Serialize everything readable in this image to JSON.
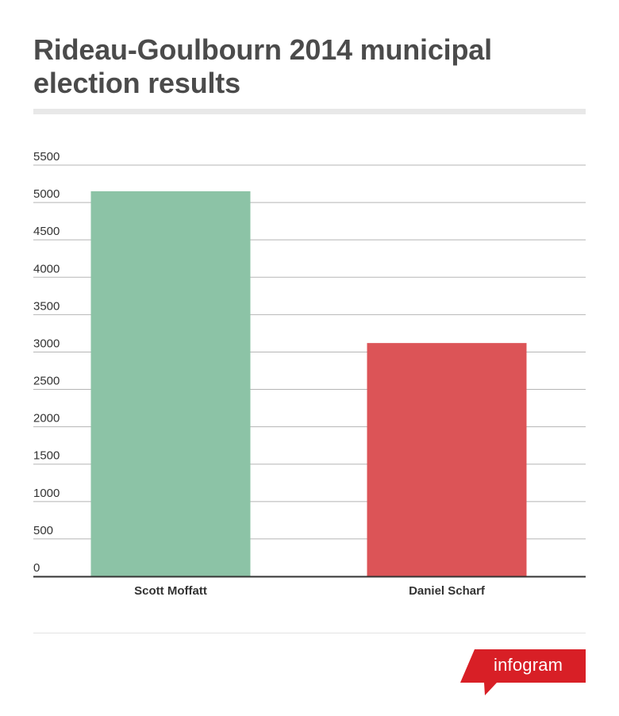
{
  "title": "Rideau-Goulbourn 2014 municipal election results",
  "brand": "infogram",
  "colors": {
    "brand_red": "#d81f26",
    "gridline": "#b5b5b5",
    "axis": "#333333"
  },
  "chart_data": {
    "type": "bar",
    "categories": [
      "Scott Moffatt",
      "Daniel Scharf"
    ],
    "values": [
      5150,
      3120
    ],
    "bar_colors": [
      "#8cc3a6",
      "#dc5457"
    ],
    "yticks": [
      "0",
      "500",
      "1000",
      "1500",
      "2000",
      "2500",
      "3000",
      "3500",
      "4000",
      "4500",
      "5000",
      "5500"
    ],
    "ylim": [
      0,
      5500
    ],
    "grid": true,
    "legend": "none"
  }
}
